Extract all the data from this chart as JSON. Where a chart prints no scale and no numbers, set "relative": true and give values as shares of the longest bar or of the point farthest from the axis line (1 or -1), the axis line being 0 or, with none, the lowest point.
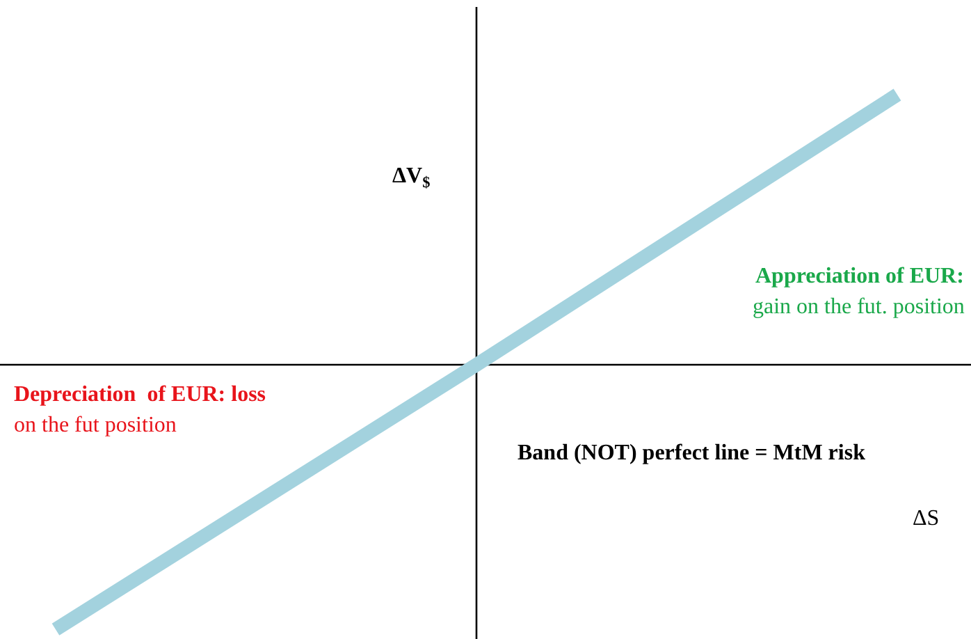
{
  "chart_data": {
    "type": "line",
    "relative": true,
    "xlabel": "ΔS",
    "ylabel": "ΔV$_{$}$",
    "categories": [
      null,
      null,
      null
    ],
    "series": [
      {
        "color": "#a3d2de",
        "values": [
          -0.98,
          0,
          1
        ]
      }
    ],
    "grid": false,
    "marker": "none",
    "line_style": "solid",
    "annotations": [
      "Appreciation of EUR:",
      "gain on the fut. position",
      "Depreciation  of EUR: loss",
      "on the fut position",
      "Band (NOT) perfect line = MtM risk"
    ]
  }
}
